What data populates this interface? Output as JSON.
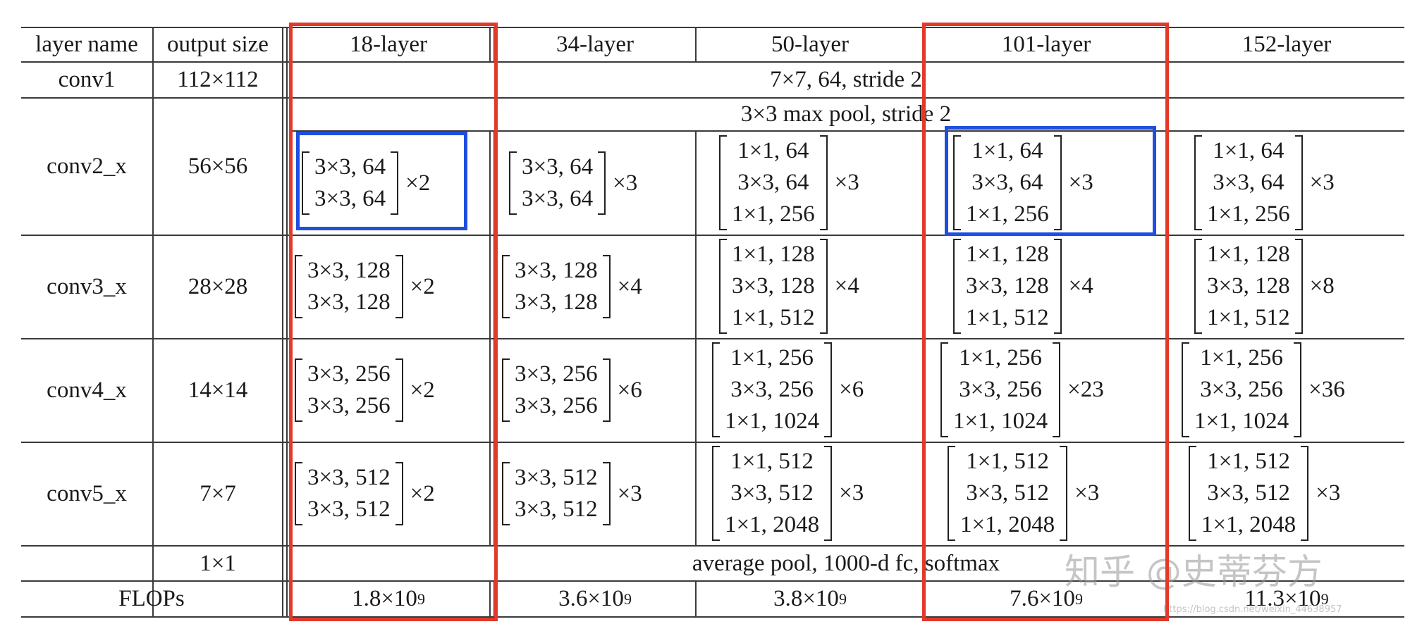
{
  "header": {
    "layer_name": "layer name",
    "output_size": "output size",
    "l18": "18-layer",
    "l34": "34-layer",
    "l50": "50-layer",
    "l101": "101-layer",
    "l152": "152-layer"
  },
  "conv1": {
    "name": "conv1",
    "size": "112×112",
    "spec": "7×7, 64, stride 2"
  },
  "pool": {
    "spec": "3×3 max pool, stride 2"
  },
  "conv2": {
    "name": "conv2_x",
    "size": "56×56",
    "l18": {
      "rows": [
        "3×3, 64",
        "3×3, 64"
      ],
      "mult": "×2"
    },
    "l34": {
      "rows": [
        "3×3, 64",
        "3×3, 64"
      ],
      "mult": "×3"
    },
    "l50": {
      "rows": [
        "1×1, 64",
        "3×3, 64",
        "1×1, 256"
      ],
      "mult": "×3"
    },
    "l101": {
      "rows": [
        "1×1, 64",
        "3×3, 64",
        "1×1, 256"
      ],
      "mult": "×3"
    },
    "l152": {
      "rows": [
        "1×1, 64",
        "3×3, 64",
        "1×1, 256"
      ],
      "mult": "×3"
    }
  },
  "conv3": {
    "name": "conv3_x",
    "size": "28×28",
    "l18": {
      "rows": [
        "3×3, 128",
        "3×3, 128"
      ],
      "mult": "×2"
    },
    "l34": {
      "rows": [
        "3×3, 128",
        "3×3, 128"
      ],
      "mult": "×4"
    },
    "l50": {
      "rows": [
        "1×1, 128",
        "3×3, 128",
        "1×1, 512"
      ],
      "mult": "×4"
    },
    "l101": {
      "rows": [
        "1×1, 128",
        "3×3, 128",
        "1×1, 512"
      ],
      "mult": "×4"
    },
    "l152": {
      "rows": [
        "1×1, 128",
        "3×3, 128",
        "1×1, 512"
      ],
      "mult": "×8"
    }
  },
  "conv4": {
    "name": "conv4_x",
    "size": "14×14",
    "l18": {
      "rows": [
        "3×3, 256",
        "3×3, 256"
      ],
      "mult": "×2"
    },
    "l34": {
      "rows": [
        "3×3, 256",
        "3×3, 256"
      ],
      "mult": "×6"
    },
    "l50": {
      "rows": [
        "1×1, 256",
        "3×3, 256",
        "1×1, 1024"
      ],
      "mult": "×6"
    },
    "l101": {
      "rows": [
        "1×1, 256",
        "3×3, 256",
        "1×1, 1024"
      ],
      "mult": "×23"
    },
    "l152": {
      "rows": [
        "1×1, 256",
        "3×3, 256",
        "1×1, 1024"
      ],
      "mult": "×36"
    }
  },
  "conv5": {
    "name": "conv5_x",
    "size": "7×7",
    "l18": {
      "rows": [
        "3×3, 512",
        "3×3, 512"
      ],
      "mult": "×2"
    },
    "l34": {
      "rows": [
        "3×3, 512",
        "3×3, 512"
      ],
      "mult": "×3"
    },
    "l50": {
      "rows": [
        "1×1, 512",
        "3×3, 512",
        "1×1, 2048"
      ],
      "mult": "×3"
    },
    "l101": {
      "rows": [
        "1×1, 512",
        "3×3, 512",
        "1×1, 2048"
      ],
      "mult": "×3"
    },
    "l152": {
      "rows": [
        "1×1, 512",
        "3×3, 512",
        "1×1, 2048"
      ],
      "mult": "×3"
    }
  },
  "final": {
    "size": "1×1",
    "spec": "average pool, 1000-d fc, softmax"
  },
  "flops": {
    "label": "FLOPs",
    "l18": {
      "base": "1.8×10",
      "exp": "9"
    },
    "l34": {
      "base": "3.6×10",
      "exp": "9"
    },
    "l50": {
      "base": "3.8×10",
      "exp": "9"
    },
    "l101": {
      "base": "7.6×10",
      "exp": "9"
    },
    "l152": {
      "base": "11.3×10",
      "exp": "9"
    }
  },
  "watermark": {
    "main": "知乎 @史蒂芬方",
    "url": "https://blog.csdn.net/weixin_44638957"
  },
  "colors": {
    "highlight_red": "#e2392b",
    "highlight_blue": "#1f4fe0"
  }
}
